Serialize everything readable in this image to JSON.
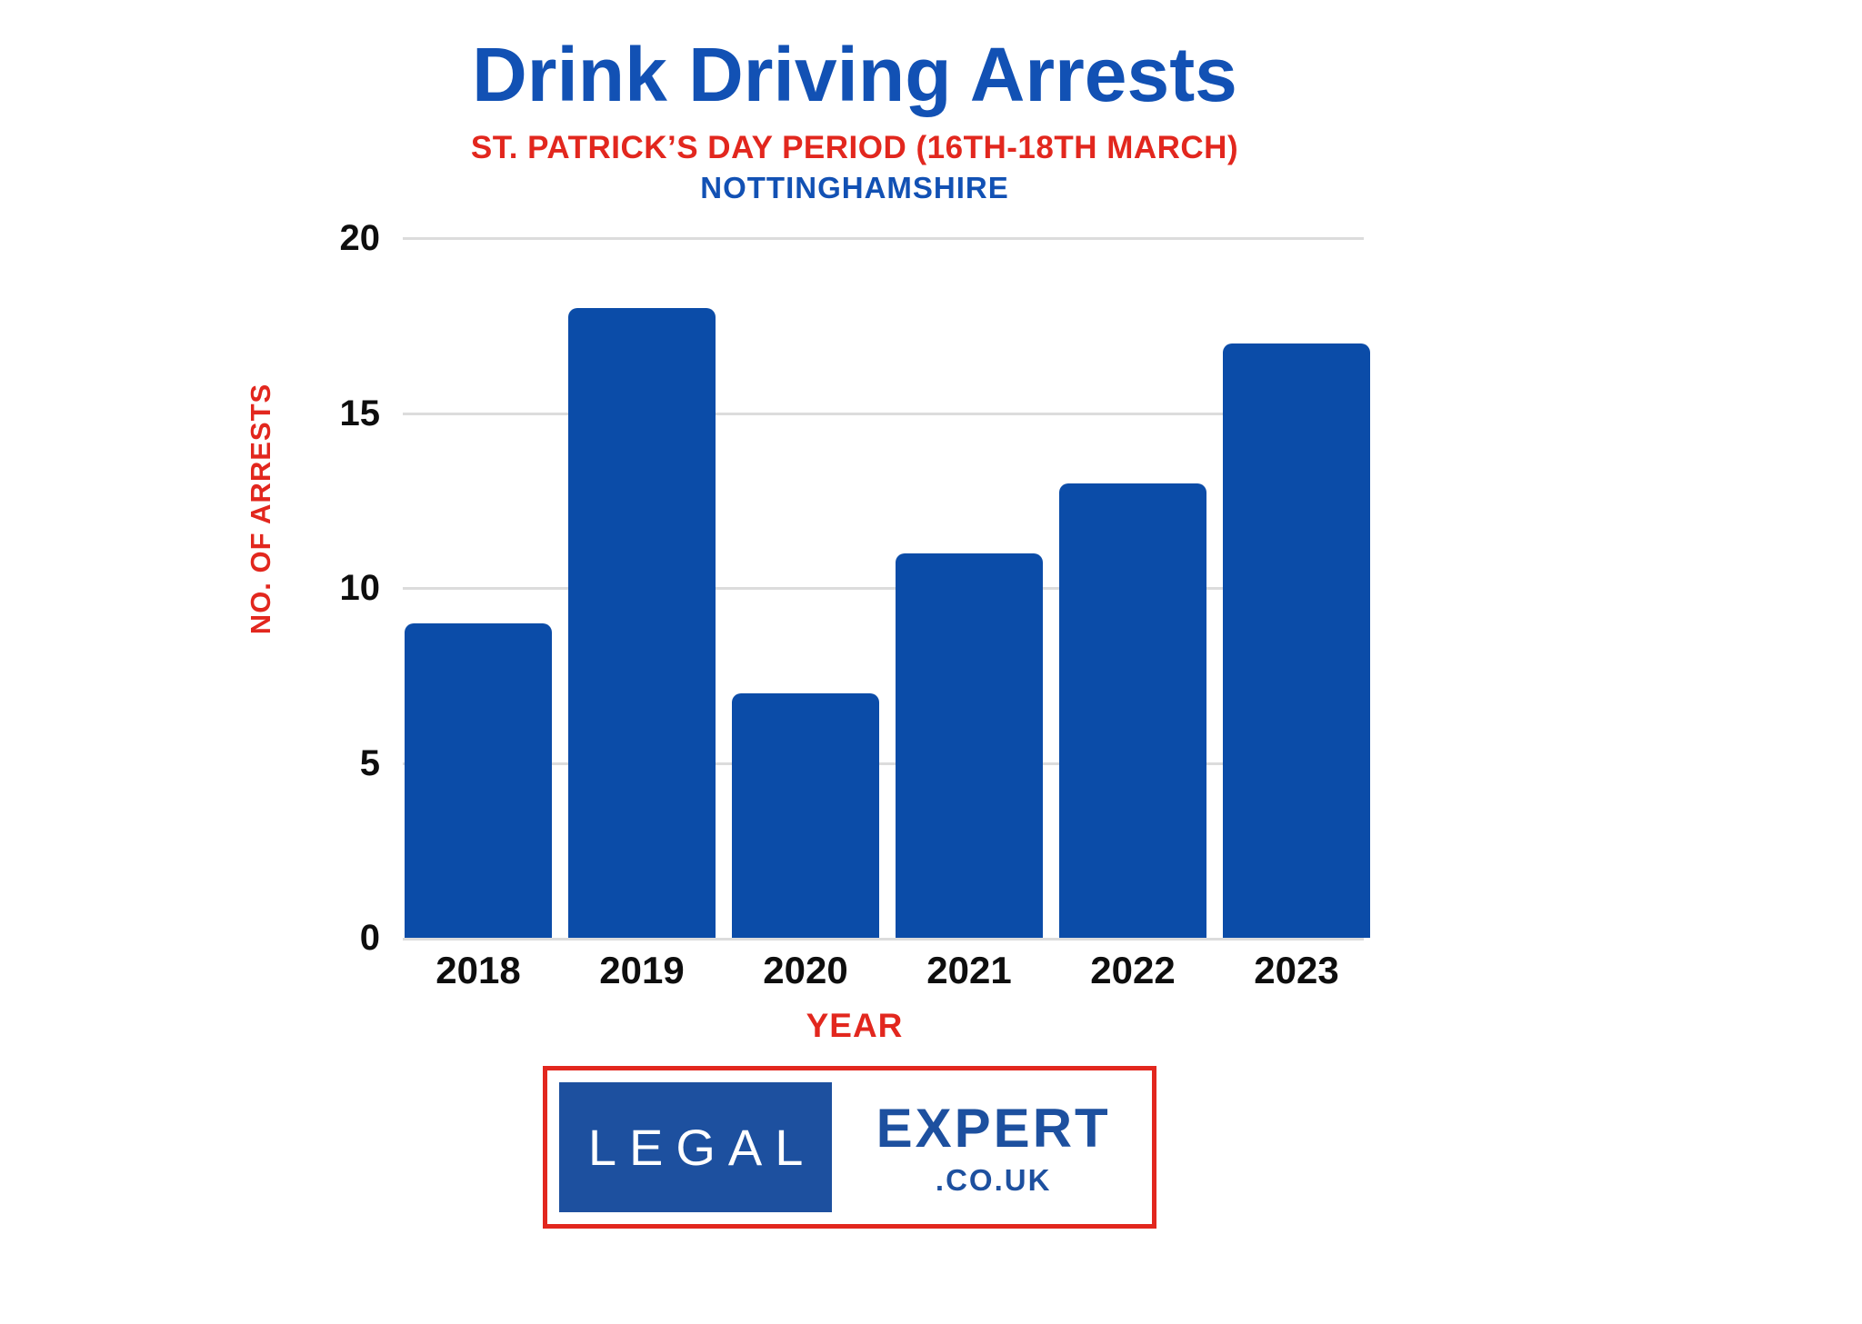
{
  "title": "Drink Driving Arrests",
  "subtitle": "ST. PATRICK’S DAY PERIOD (16TH-18TH MARCH)",
  "location": "NOTTINGHAMSHIRE",
  "colors": {
    "title_blue": "#1251B4",
    "bar_blue": "#0B4CA8",
    "accent_red": "#E2271E",
    "grid_gray": "#DCDCDC",
    "logo_blue": "#1D509F"
  },
  "chart_data": {
    "type": "bar",
    "categories": [
      "2018",
      "2019",
      "2020",
      "2021",
      "2022",
      "2023"
    ],
    "values": [
      9,
      18,
      7,
      11,
      13,
      17
    ],
    "title": "Drink Driving Arrests",
    "subtitle": "ST. PATRICK’S DAY PERIOD (16TH-18TH MARCH)",
    "region": "NOTTINGHAMSHIRE",
    "xlabel": "YEAR",
    "ylabel": "NO. OF ARRESTS",
    "ylim": [
      0,
      20
    ],
    "yticks": [
      0,
      5,
      10,
      15,
      20
    ],
    "grid": "horizontal",
    "legend": "none",
    "bar_color": "#0B4CA8"
  },
  "logo": {
    "legal": "LEGAL",
    "expert": "EXPERT",
    "domain": ".CO.UK"
  }
}
